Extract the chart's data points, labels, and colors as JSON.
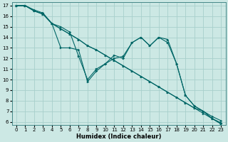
{
  "xlabel": "Humidex (Indice chaleur)",
  "xlim": [
    0,
    23
  ],
  "ylim": [
    6,
    17
  ],
  "xticks": [
    0,
    1,
    2,
    3,
    4,
    5,
    6,
    7,
    8,
    9,
    10,
    11,
    12,
    13,
    14,
    15,
    16,
    17,
    18,
    19,
    20,
    21,
    22,
    23
  ],
  "yticks": [
    6,
    7,
    8,
    9,
    10,
    11,
    12,
    13,
    14,
    15,
    16,
    17
  ],
  "bg_color": "#cce8e4",
  "grid_color": "#a8d0cc",
  "line_color": "#006666",
  "lines": [
    {
      "x": [
        0,
        1,
        2,
        3,
        4,
        5,
        6,
        7,
        8,
        9,
        10,
        11,
        12,
        13,
        14,
        15,
        16,
        17,
        18,
        19,
        20,
        21,
        22,
        23
      ],
      "y": [
        17,
        17,
        16.5,
        16.2,
        15.3,
        14.8,
        14.3,
        13.8,
        13.2,
        12.8,
        12.3,
        11.8,
        11.3,
        10.8,
        10.3,
        9.8,
        9.3,
        8.8,
        8.3,
        7.8,
        7.3,
        6.8,
        6.3,
        5.9
      ]
    },
    {
      "x": [
        0,
        1,
        2,
        3,
        4,
        5,
        6,
        7,
        8,
        9,
        10,
        11,
        12,
        13,
        14,
        15,
        16,
        17,
        18,
        19,
        20,
        21,
        22,
        23
      ],
      "y": [
        17,
        17,
        16.5,
        16.2,
        15.3,
        14.8,
        14.3,
        13.8,
        13.2,
        12.8,
        12.3,
        11.8,
        11.3,
        10.8,
        10.3,
        9.8,
        9.3,
        8.8,
        8.3,
        7.8,
        7.3,
        7.0,
        6.5,
        6.1
      ]
    },
    {
      "x": [
        0,
        1,
        2,
        3,
        4,
        5,
        6,
        7,
        8,
        9,
        10,
        11,
        12,
        13,
        14,
        15,
        16,
        17,
        18,
        19,
        20,
        21,
        22,
        23
      ],
      "y": [
        17,
        17,
        16.6,
        16.3,
        15.3,
        13.0,
        13.0,
        12.8,
        9.8,
        10.8,
        11.5,
        12.0,
        12.2,
        13.5,
        14.0,
        13.2,
        14.0,
        13.8,
        11.5,
        8.5,
        7.5,
        7.0,
        6.3,
        5.8
      ]
    },
    {
      "x": [
        0,
        1,
        2,
        3,
        4,
        5,
        6,
        7,
        8,
        9,
        10,
        11,
        12,
        13,
        14,
        15,
        16,
        17,
        18,
        19,
        20,
        21,
        22,
        23
      ],
      "y": [
        17,
        17,
        16.5,
        16.2,
        15.3,
        15.0,
        14.5,
        12.2,
        10.0,
        11.0,
        11.5,
        12.3,
        12.0,
        13.5,
        14.0,
        13.2,
        14.0,
        13.5,
        11.5,
        8.5,
        7.5,
        7.0,
        6.3,
        5.8
      ]
    }
  ]
}
